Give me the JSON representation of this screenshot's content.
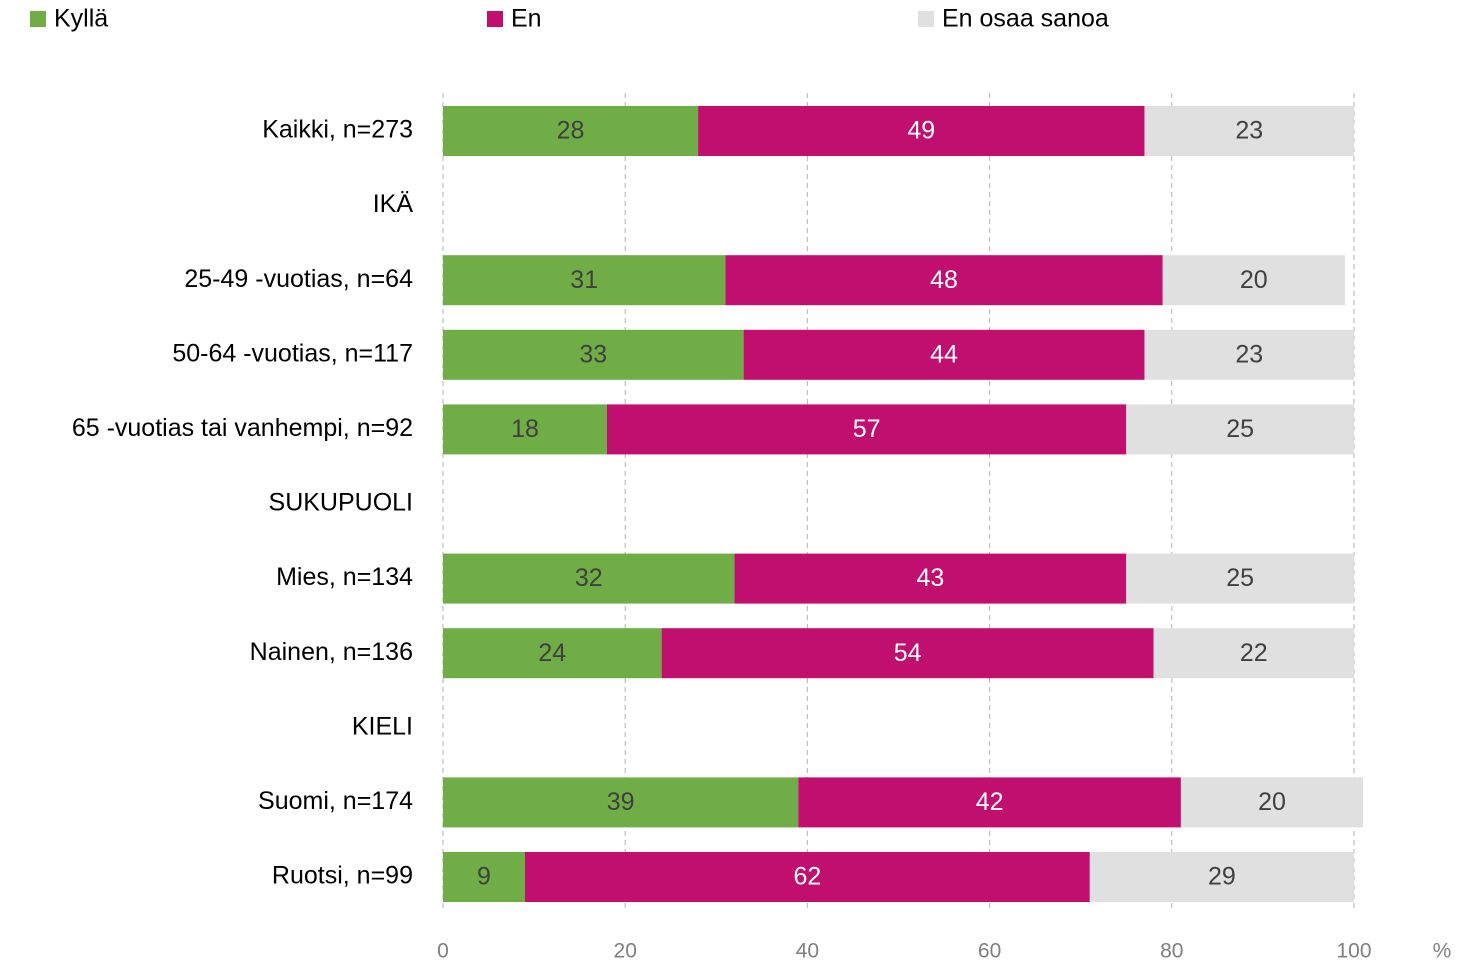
{
  "chart_data": {
    "type": "stacked_barh",
    "categories": [
      "Kaikki, n=273",
      "IKÄ",
      "25-49 -vuotias, n=64",
      "50-64 -vuotias, n=117",
      "65 -vuotias tai vanhempi, n=92",
      "SUKUPUOLI",
      "Mies, n=134",
      "Nainen, n=136",
      "KIELI",
      "Suomi, n=174",
      "Ruotsi, n=99"
    ],
    "series": [
      {
        "name": "Kyllä",
        "color": "#70ad47",
        "label_color": "#404040",
        "values": [
          28,
          null,
          31,
          33,
          18,
          null,
          32,
          24,
          null,
          39,
          9
        ]
      },
      {
        "name": "En",
        "color": "#c00f6e",
        "label_color": "#ffffff",
        "values": [
          49,
          null,
          48,
          44,
          57,
          null,
          43,
          54,
          null,
          42,
          62
        ]
      },
      {
        "name": "En osaa sanoa",
        "color": "#e0e0e0",
        "label_color": "#404040",
        "values": [
          23,
          null,
          20,
          23,
          25,
          null,
          25,
          22,
          null,
          20,
          29
        ]
      }
    ],
    "xlim": [
      0,
      100
    ],
    "xticks": [
      0,
      20,
      40,
      60,
      80,
      100
    ],
    "xlabel": "%",
    "grid": true,
    "legend": "top"
  }
}
